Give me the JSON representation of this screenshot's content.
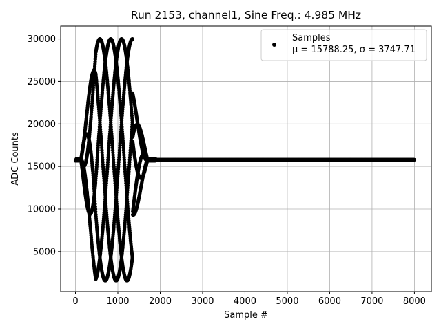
{
  "chart_data": {
    "type": "scatter",
    "title": "Run 2153, channel1, Sine Freq.: 4.985 MHz",
    "xlabel": "Sample #",
    "ylabel": "ADC Counts",
    "xlim": [
      -350,
      8400
    ],
    "ylim": [
      300,
      31500
    ],
    "x_ticks": [
      0,
      1000,
      2000,
      3000,
      4000,
      5000,
      6000,
      7000,
      8000
    ],
    "x_tick_labels": [
      "0",
      "1000",
      "2000",
      "3000",
      "4000",
      "5000",
      "6000",
      "7000",
      "8000"
    ],
    "y_ticks": [
      5000,
      10000,
      15000,
      20000,
      25000,
      30000
    ],
    "y_tick_labels": [
      "5000",
      "10000",
      "15000",
      "20000",
      "25000",
      "30000"
    ],
    "grid": true,
    "legend_position": "top-right",
    "series": [
      {
        "name": "Samples",
        "color": "#000000",
        "marker": "circle",
        "stats_label": "μ = 15788.25, σ = 3747.71",
        "description_values": {
          "baseline": 15788,
          "signal_amplitude_peak": 14200,
          "signal_start_sample": 130,
          "signal_end_sample": 1700,
          "last_sample": 8000,
          "envelope_period_samples": 640
        }
      }
    ]
  }
}
